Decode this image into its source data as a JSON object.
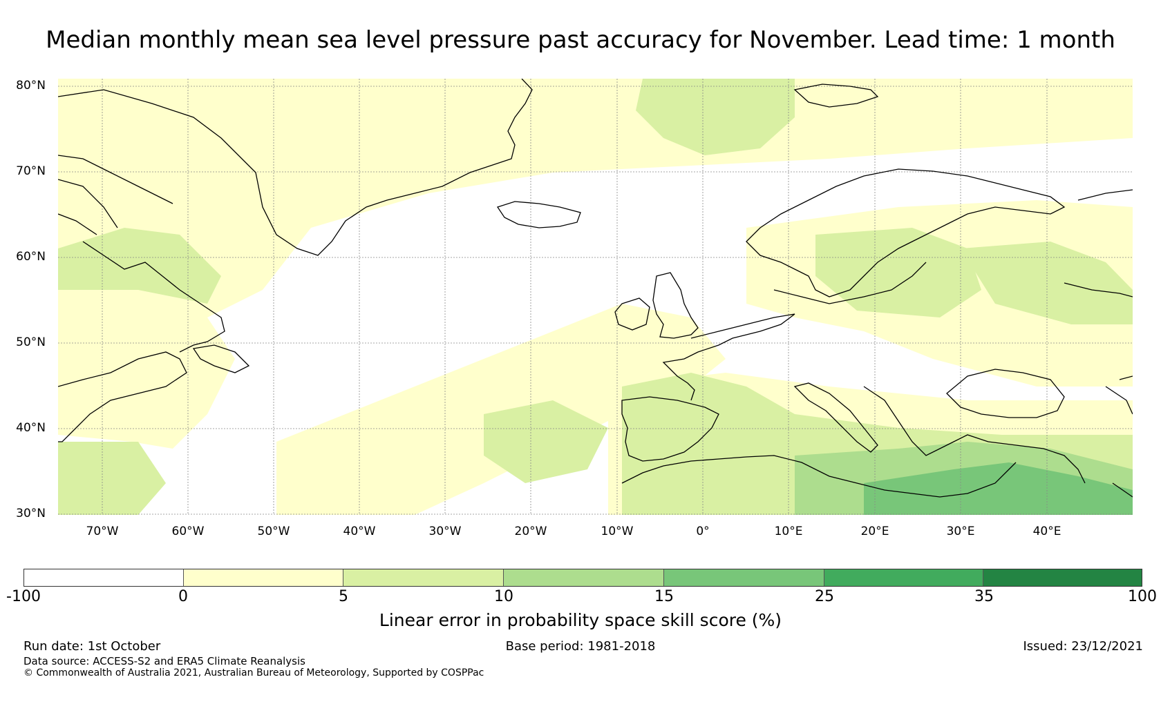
{
  "title": "Median monthly mean sea level pressure past accuracy for November. Lead time: 1 month",
  "map": {
    "lat_labels": [
      "80°N",
      "70°N",
      "60°N",
      "50°N",
      "40°N",
      "30°N"
    ],
    "lon_labels": [
      "70°W",
      "60°W",
      "50°W",
      "40°W",
      "30°W",
      "20°W",
      "10°W",
      "0°",
      "10°E",
      "20°E",
      "30°E",
      "40°E"
    ]
  },
  "colorbar": {
    "ticks": [
      "-100",
      "0",
      "5",
      "10",
      "15",
      "25",
      "35",
      "100"
    ],
    "colors": [
      "#ffffff",
      "#ffffcc",
      "#d9f0a3",
      "#addd8e",
      "#78c679",
      "#41ab5d",
      "#238443"
    ],
    "label": "Linear error in probability space skill score (%)"
  },
  "footer": {
    "run_date": "Run date: 1st October",
    "base_period": "Base period: 1981-2018",
    "issued": "Issued: 23/12/2021",
    "data_source": "Data source: ACCESS-S2 and ERA5 Climate Reanalysis",
    "copyright": "© Commonwealth of Australia 2021, Australian Bureau of Meteorology, Supported by COSPPac"
  }
}
